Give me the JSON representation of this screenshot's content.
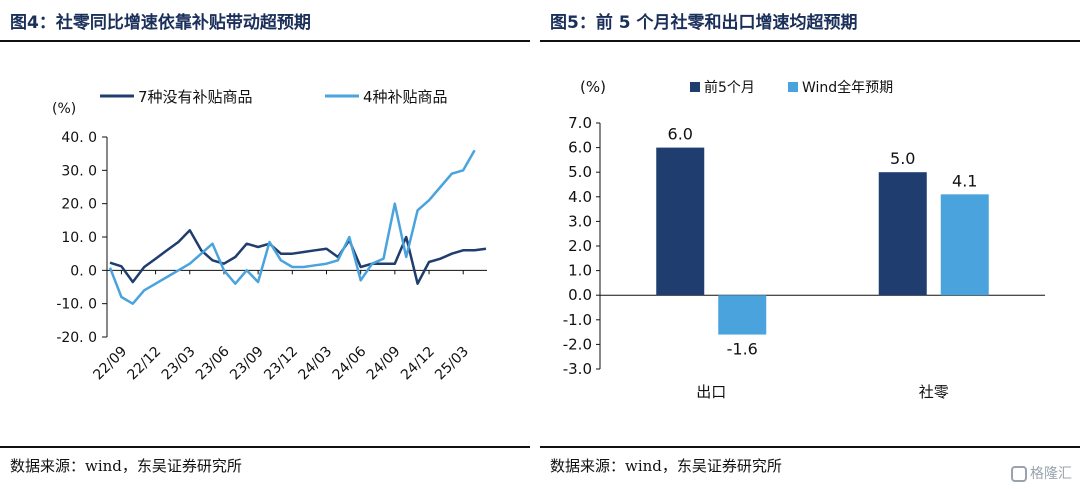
{
  "colors": {
    "dark": "#1f3d6e",
    "light": "#4aa3dc",
    "axis": "#111111",
    "title": "#1a2f5a"
  },
  "left": {
    "title": "图4：社零同比增速依靠补贴带动超预期",
    "source": "数据来源：wind，东吴证券研究所",
    "chart_data": {
      "type": "line",
      "yunit": "(%)",
      "ylim": [
        -20,
        40
      ],
      "yticks": [
        "40. 0",
        "30. 0",
        "20. 0",
        "10. 0",
        "0. 0",
        "-10. 0",
        "-20. 0"
      ],
      "x_tick_labels": [
        "22/09",
        "22/12",
        "23/03",
        "23/06",
        "23/09",
        "23/12",
        "24/03",
        "24/06",
        "24/09",
        "24/12",
        "25/03"
      ],
      "x_months": [
        "22/08",
        "22/09",
        "22/10",
        "22/11",
        "22/12",
        "23/01",
        "23/02",
        "23/03",
        "23/04",
        "23/05",
        "23/06",
        "23/07",
        "23/08",
        "23/09",
        "23/10",
        "23/11",
        "23/12",
        "24/01",
        "24/02",
        "24/03",
        "24/04",
        "24/05",
        "24/06",
        "24/07",
        "24/08",
        "24/09",
        "24/10",
        "24/11",
        "24/12",
        "25/01",
        "25/02",
        "25/03",
        "25/04",
        "25/05"
      ],
      "legend_position": "top",
      "series": [
        {
          "name": "7种没有补贴商品",
          "color": "#1f3d6e",
          "values": [
            2.3,
            1.2,
            -3.5,
            1.0,
            3.5,
            6.0,
            8.5,
            12,
            6,
            3,
            2,
            4,
            8,
            7,
            8,
            5,
            5,
            5.5,
            6,
            6.5,
            4,
            9,
            1,
            2,
            2,
            2,
            10,
            -4,
            2.5,
            3.5,
            5,
            6,
            6,
            6.5
          ]
        },
        {
          "name": "4种补贴商品",
          "color": "#4aa3dc",
          "values": [
            0.8,
            -8,
            -10,
            -6,
            -4,
            -2,
            0,
            2,
            5,
            8,
            0,
            -4,
            0,
            -3.5,
            8.5,
            3,
            1,
            1,
            1.5,
            2,
            3,
            10,
            -3,
            2,
            3.5,
            20,
            4,
            18,
            21,
            25,
            29,
            30,
            36,
            null
          ]
        }
      ]
    }
  },
  "right": {
    "title": "图5：前 5 个月社零和出口增速均超预期",
    "source": "数据来源：wind，东吴证券研究所",
    "chart_data": {
      "type": "bar",
      "yunit": "(%)",
      "ylim": [
        -3,
        7
      ],
      "yticks": [
        "7.0",
        "6.0",
        "5.0",
        "4.0",
        "3.0",
        "2.0",
        "1.0",
        "0.0",
        "-1.0",
        "-2.0",
        "-3.0"
      ],
      "categories": [
        "出口",
        "社零"
      ],
      "legend_position": "top",
      "series": [
        {
          "name": "前5个月",
          "color": "#1f3d6e",
          "values": [
            6.0,
            5.0
          ],
          "labels": [
            "6.0",
            "5.0"
          ]
        },
        {
          "name": "Wind全年预期",
          "color": "#4aa3dc",
          "values": [
            -1.6,
            4.1
          ],
          "labels": [
            "-1.6",
            "4.1"
          ]
        }
      ]
    }
  },
  "watermark": "格隆汇"
}
